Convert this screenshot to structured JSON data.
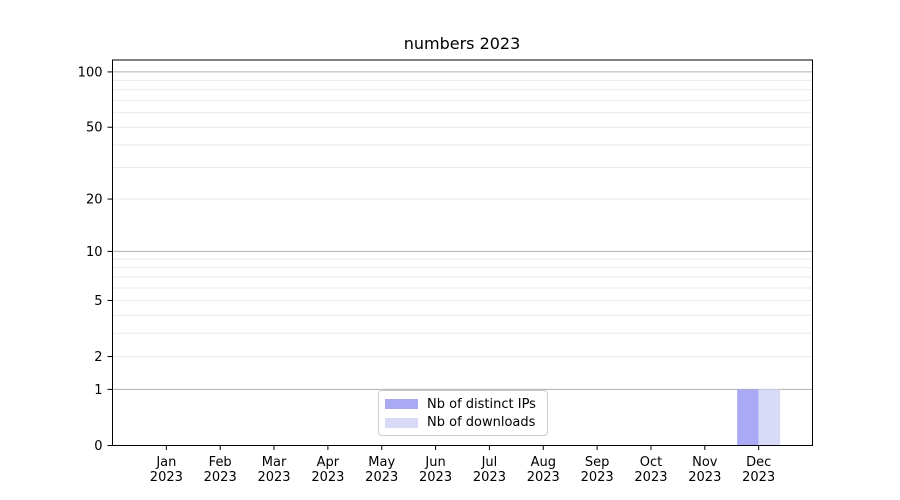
{
  "chart_data": {
    "type": "bar",
    "title": "numbers 2023",
    "months": [
      "Jan",
      "Feb",
      "Mar",
      "Apr",
      "May",
      "Jun",
      "Jul",
      "Aug",
      "Sep",
      "Oct",
      "Nov",
      "Dec"
    ],
    "year": "2023",
    "categories": [
      "Jan 2023",
      "Feb 2023",
      "Mar 2023",
      "Apr 2023",
      "May 2023",
      "Jun 2023",
      "Jul 2023",
      "Aug 2023",
      "Sep 2023",
      "Oct 2023",
      "Nov 2023",
      "Dec 2023"
    ],
    "series": [
      {
        "name": "Nb of distinct IPs",
        "color": "#a9a9f4",
        "values": [
          0,
          0,
          0,
          0,
          0,
          0,
          0,
          0,
          0,
          0,
          0,
          1
        ]
      },
      {
        "name": "Nb of downloads",
        "color": "#d9d9f8",
        "values": [
          0,
          0,
          0,
          0,
          0,
          0,
          0,
          0,
          0,
          0,
          0,
          1
        ]
      }
    ],
    "yscale": "log1p",
    "ylim": [
      0,
      116
    ],
    "ytick_labels": [
      0,
      1,
      2,
      5,
      10,
      20,
      50,
      100
    ],
    "grid_major": [
      1,
      10,
      100
    ],
    "grid_minor": [
      2,
      3,
      4,
      5,
      6,
      7,
      8,
      9,
      20,
      30,
      40,
      50,
      60,
      70,
      80,
      90
    ],
    "grid": "horizontal",
    "legend_position": "bottom-center",
    "colors": {
      "grid_major": "#b0b0b0",
      "grid_minor": "#e9e9e9",
      "spine": "#000000",
      "text": "#000000",
      "background": "#ffffff"
    }
  }
}
